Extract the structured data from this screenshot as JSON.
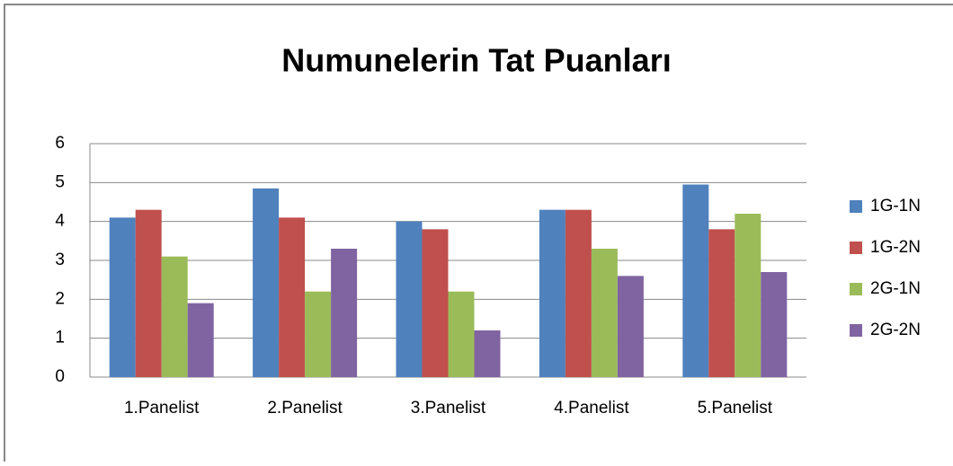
{
  "chart_data": {
    "type": "bar",
    "title": "Numunelerin Tat Puanları",
    "categories": [
      "1.Panelist",
      "2.Panelist",
      "3.Panelist",
      "4.Panelist",
      "5.Panelist"
    ],
    "series": [
      {
        "name": "1G-1N",
        "color": "#4f81bd",
        "values": [
          4.1,
          4.85,
          4.0,
          4.3,
          4.95
        ]
      },
      {
        "name": "1G-2N",
        "color": "#c0504d",
        "values": [
          4.3,
          4.1,
          3.8,
          4.3,
          3.8
        ]
      },
      {
        "name": "2G-1N",
        "color": "#9bbb59",
        "values": [
          3.1,
          2.2,
          2.2,
          3.3,
          4.2
        ]
      },
      {
        "name": "2G-2N",
        "color": "#8064a2",
        "values": [
          1.9,
          3.3,
          1.2,
          2.6,
          2.7
        ]
      }
    ],
    "ylim": [
      0,
      6
    ],
    "yticks": [
      0,
      1,
      2,
      3,
      4,
      5,
      6
    ],
    "grid": true,
    "legend": "right"
  }
}
